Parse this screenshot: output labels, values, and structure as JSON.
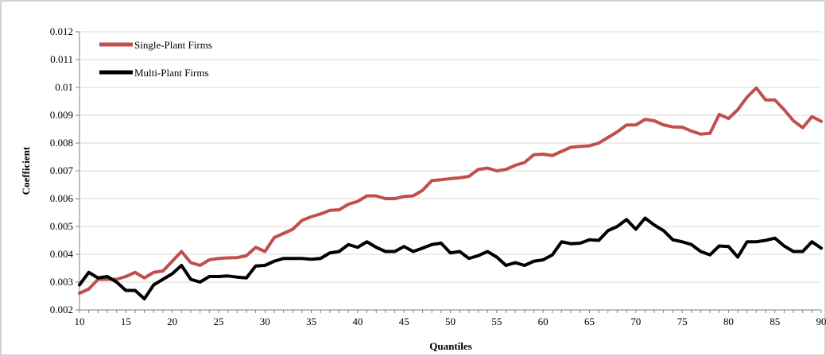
{
  "colors": {
    "single_plant": "#c0504d",
    "multi_plant": "#000000",
    "gridline": "#d9d9d9",
    "axis": "#808080",
    "border": "#a6a6a6"
  },
  "chart_data": {
    "type": "line",
    "title": "",
    "xlabel": "Quantiles",
    "ylabel": "Coefficient",
    "xlim": [
      10,
      90
    ],
    "ylim": [
      0.002,
      0.012
    ],
    "x_ticks": [
      "10",
      "15",
      "20",
      "25",
      "30",
      "35",
      "40",
      "45",
      "50",
      "55",
      "60",
      "65",
      "70",
      "75",
      "80",
      "85",
      "90"
    ],
    "x_tick_values": [
      10,
      15,
      20,
      25,
      30,
      35,
      40,
      45,
      50,
      55,
      60,
      65,
      70,
      75,
      80,
      85,
      90
    ],
    "y_ticks": [
      "0.002",
      "0.003",
      "0.004",
      "0.005",
      "0.006",
      "0.007",
      "0.008",
      "0.009",
      "0.01",
      "0.011",
      "0.012"
    ],
    "y_tick_values": [
      0.002,
      0.003,
      0.004,
      0.005,
      0.006,
      0.007,
      0.008,
      0.009,
      0.01,
      0.011,
      0.012
    ],
    "grid": "horizontal",
    "legend_position": "top-left",
    "x": [
      10,
      11,
      12,
      13,
      14,
      15,
      16,
      17,
      18,
      19,
      20,
      21,
      22,
      23,
      24,
      25,
      26,
      27,
      28,
      29,
      30,
      31,
      32,
      33,
      34,
      35,
      36,
      37,
      38,
      39,
      40,
      41,
      42,
      43,
      44,
      45,
      46,
      47,
      48,
      49,
      50,
      51,
      52,
      53,
      54,
      55,
      56,
      57,
      58,
      59,
      60,
      61,
      62,
      63,
      64,
      65,
      66,
      67,
      68,
      69,
      70,
      71,
      72,
      73,
      74,
      75,
      76,
      77,
      78,
      79,
      80,
      81,
      82,
      83,
      84,
      85,
      86,
      87,
      88,
      89,
      90
    ],
    "series": [
      {
        "name": "Single-Plant Firms",
        "values": [
          0.0026,
          0.00275,
          0.0031,
          0.0031,
          0.0031,
          0.0032,
          0.00335,
          0.00315,
          0.00335,
          0.0034,
          0.00375,
          0.0041,
          0.0037,
          0.0036,
          0.0038,
          0.00385,
          0.00387,
          0.00388,
          0.00395,
          0.00425,
          0.0041,
          0.0046,
          0.00475,
          0.0049,
          0.00522,
          0.00535,
          0.00545,
          0.00558,
          0.0056,
          0.0058,
          0.0059,
          0.0061,
          0.0061,
          0.006,
          0.006,
          0.00608,
          0.0061,
          0.0063,
          0.00665,
          0.00668,
          0.00672,
          0.00675,
          0.0068,
          0.00705,
          0.0071,
          0.007,
          0.00705,
          0.0072,
          0.0073,
          0.00758,
          0.0076,
          0.00755,
          0.0077,
          0.00785,
          0.00788,
          0.0079,
          0.008,
          0.0082,
          0.0084,
          0.00865,
          0.00865,
          0.00885,
          0.0088,
          0.00865,
          0.00858,
          0.00857,
          0.00843,
          0.00832,
          0.00835,
          0.00903,
          0.00888,
          0.0092,
          0.00965,
          0.00998,
          0.00955,
          0.00955,
          0.0092,
          0.0088,
          0.00855,
          0.00895,
          0.00878
        ]
      },
      {
        "name": "Multi-Plant Firms",
        "values": [
          0.0029,
          0.00335,
          0.00315,
          0.0032,
          0.003,
          0.0027,
          0.0027,
          0.0024,
          0.0029,
          0.0031,
          0.0033,
          0.0036,
          0.0031,
          0.003,
          0.0032,
          0.0032,
          0.00322,
          0.00318,
          0.00315,
          0.00358,
          0.0036,
          0.00375,
          0.00385,
          0.00385,
          0.00385,
          0.00382,
          0.00385,
          0.00405,
          0.0041,
          0.00435,
          0.00425,
          0.00445,
          0.00425,
          0.0041,
          0.0041,
          0.00428,
          0.0041,
          0.00422,
          0.00435,
          0.0044,
          0.00405,
          0.0041,
          0.00385,
          0.00395,
          0.0041,
          0.0039,
          0.0036,
          0.0037,
          0.0036,
          0.00375,
          0.0038,
          0.00398,
          0.00445,
          0.00438,
          0.0044,
          0.00452,
          0.0045,
          0.00485,
          0.005,
          0.00525,
          0.0049,
          0.0053,
          0.00505,
          0.00485,
          0.00452,
          0.00445,
          0.00435,
          0.0041,
          0.00398,
          0.0043,
          0.00428,
          0.0039,
          0.00445,
          0.00445,
          0.0045,
          0.00458,
          0.0043,
          0.0041,
          0.0041,
          0.00445,
          0.00422
        ]
      }
    ]
  }
}
